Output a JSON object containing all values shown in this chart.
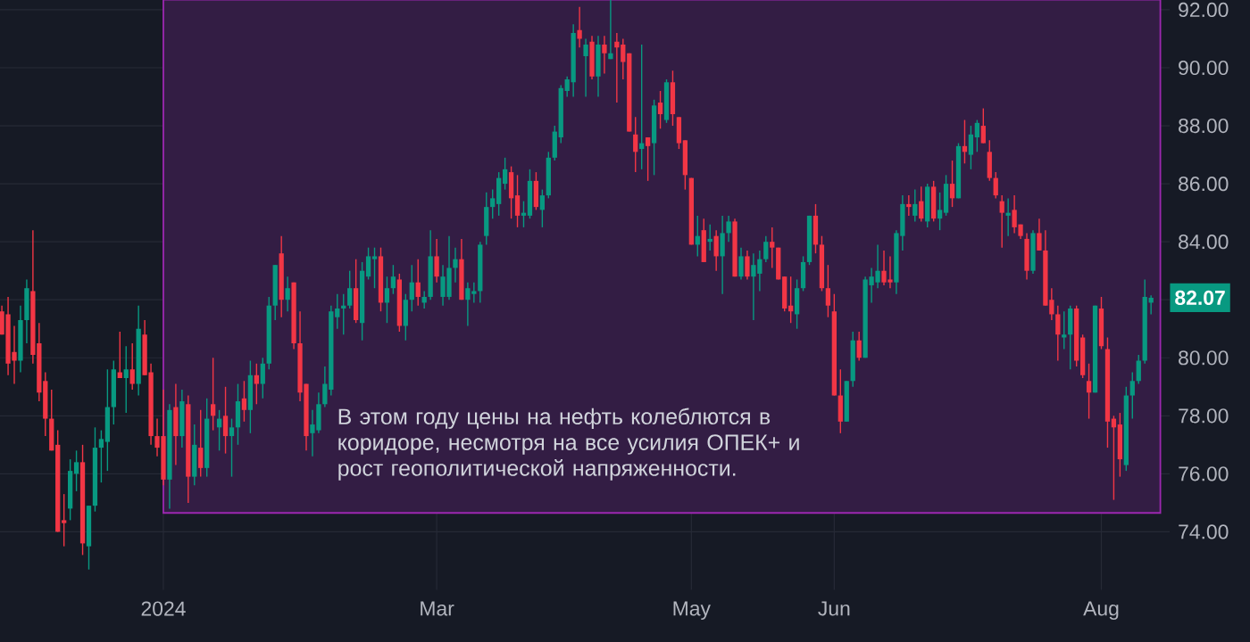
{
  "chart_data": {
    "type": "candlestick",
    "categories": [
      null,
      null,
      null,
      null,
      null,
      null,
      null,
      null,
      null,
      null,
      null,
      null,
      null,
      null,
      null,
      null,
      null,
      null,
      null,
      null,
      null,
      null,
      null,
      null,
      null,
      null,
      "2024",
      null,
      null,
      null,
      null,
      null,
      null,
      null,
      null,
      null,
      null,
      null,
      null,
      null,
      null,
      null,
      null,
      null,
      null,
      null,
      null,
      null,
      null,
      null,
      null,
      null,
      null,
      null,
      null,
      null,
      null,
      null,
      null,
      null,
      null,
      null,
      null,
      null,
      null,
      null,
      null,
      null,
      null,
      null,
      "Mar",
      null,
      null,
      null,
      null,
      null,
      null,
      null,
      null,
      null,
      null,
      null,
      null,
      null,
      null,
      null,
      null,
      null,
      null,
      null,
      null,
      null,
      null,
      null,
      null,
      null,
      null,
      null,
      null,
      null,
      null,
      null,
      null,
      null,
      null,
      null,
      null,
      null,
      null,
      null,
      null,
      "May",
      null,
      null,
      null,
      null,
      null,
      null,
      null,
      null,
      null,
      null,
      null,
      null,
      null,
      null,
      null,
      null,
      null,
      null,
      null,
      null,
      null,
      null,
      "Jun",
      null,
      null,
      null,
      null,
      null,
      null,
      null,
      null,
      null,
      null,
      null,
      null,
      null,
      null,
      null,
      null,
      null,
      null,
      null,
      null,
      null,
      null,
      null,
      null,
      null,
      null,
      null,
      null,
      null,
      null,
      null,
      null,
      null,
      null,
      null,
      null,
      null,
      null,
      null,
      null,
      null,
      null,
      "Aug",
      null,
      null,
      null,
      null,
      null,
      null,
      null,
      null
    ],
    "ohlc": [
      [
        81.6,
        81.8,
        80.8,
        80.8
      ],
      [
        81.5,
        82.1,
        79.4,
        79.8
      ],
      [
        80.2,
        81.1,
        79.1,
        79.9
      ],
      [
        79.9,
        81.8,
        79.5,
        81.3
      ],
      [
        81.3,
        82.7,
        80.5,
        82.4
      ],
      [
        82.3,
        84.4,
        79.8,
        80.1
      ],
      [
        80.5,
        81.2,
        78.5,
        78.8
      ],
      [
        79.2,
        79.5,
        77.3,
        77.9
      ],
      [
        77.9,
        78.9,
        76.8,
        76.8
      ],
      [
        77.0,
        77.5,
        74.0,
        74.0
      ],
      [
        74.4,
        75.3,
        73.5,
        74.3
      ],
      [
        74.8,
        76.5,
        74.4,
        76.1
      ],
      [
        76.0,
        76.8,
        75.4,
        76.4
      ],
      [
        76.4,
        77.0,
        73.2,
        73.6
      ],
      [
        73.5,
        74.9,
        72.7,
        74.9
      ],
      [
        74.9,
        77.6,
        74.7,
        76.9
      ],
      [
        76.9,
        77.5,
        75.7,
        77.2
      ],
      [
        77.1,
        79.6,
        76.1,
        78.3
      ],
      [
        78.3,
        79.9,
        77.7,
        79.6
      ],
      [
        79.5,
        80.9,
        79.3,
        79.3
      ],
      [
        79.3,
        80.4,
        78.1,
        79.6
      ],
      [
        79.6,
        80.5,
        78.9,
        79.1
      ],
      [
        79.1,
        81.8,
        78.7,
        81.0
      ],
      [
        80.8,
        81.3,
        79.4,
        79.4
      ],
      [
        79.5,
        79.8,
        77.0,
        77.3
      ],
      [
        77.3,
        77.9,
        76.6,
        76.9
      ],
      [
        77.3,
        78.9,
        75.6,
        75.8
      ],
      [
        75.8,
        78.4,
        74.8,
        78.2
      ],
      [
        78.3,
        79.1,
        76.3,
        77.3
      ],
      [
        77.3,
        78.9,
        76.9,
        78.5
      ],
      [
        78.4,
        78.7,
        75.0,
        75.9
      ],
      [
        75.9,
        77.7,
        75.6,
        77.0
      ],
      [
        76.9,
        78.2,
        75.9,
        76.2
      ],
      [
        76.2,
        78.6,
        75.9,
        77.9
      ],
      [
        78.4,
        80.0,
        77.5,
        78.0
      ],
      [
        77.6,
        78.2,
        76.8,
        77.9
      ],
      [
        78.0,
        79.0,
        76.7,
        77.3
      ],
      [
        77.3,
        77.9,
        75.9,
        77.6
      ],
      [
        77.6,
        79.1,
        77.0,
        78.5
      ],
      [
        78.6,
        79.2,
        77.8,
        78.2
      ],
      [
        78.2,
        79.9,
        77.4,
        79.4
      ],
      [
        79.4,
        79.8,
        78.4,
        79.1
      ],
      [
        79.1,
        80.0,
        78.6,
        79.8
      ],
      [
        79.8,
        82.1,
        79.6,
        81.8
      ],
      [
        81.8,
        83.2,
        81.3,
        83.2
      ],
      [
        83.6,
        84.2,
        81.4,
        82.0
      ],
      [
        82.0,
        82.8,
        81.6,
        82.4
      ],
      [
        82.6,
        82.6,
        80.3,
        80.5
      ],
      [
        80.5,
        81.6,
        78.5,
        78.8
      ],
      [
        79.1,
        79.1,
        76.8,
        77.3
      ],
      [
        77.4,
        78.2,
        76.6,
        77.7
      ],
      [
        77.5,
        78.8,
        77.4,
        78.4
      ],
      [
        78.4,
        79.7,
        78.3,
        79.1
      ],
      [
        78.9,
        81.8,
        78.7,
        81.6
      ],
      [
        81.4,
        82.2,
        81.0,
        81.7
      ],
      [
        81.7,
        82.2,
        80.8,
        81.8
      ],
      [
        81.8,
        83.0,
        81.7,
        82.4
      ],
      [
        82.4,
        83.4,
        81.2,
        81.3
      ],
      [
        81.2,
        83.3,
        80.6,
        83.0
      ],
      [
        82.8,
        83.8,
        82.7,
        83.5
      ],
      [
        83.4,
        83.8,
        82.4,
        83.5
      ],
      [
        83.5,
        83.8,
        81.6,
        81.9
      ],
      [
        81.9,
        82.8,
        81.2,
        82.4
      ],
      [
        82.4,
        83.2,
        82.2,
        82.8
      ],
      [
        82.7,
        82.9,
        80.9,
        81.1
      ],
      [
        81.1,
        82.2,
        80.6,
        82.0
      ],
      [
        82.0,
        83.2,
        81.6,
        82.6
      ],
      [
        82.6,
        83.4,
        81.8,
        82.1
      ],
      [
        81.9,
        82.3,
        81.7,
        82.1
      ],
      [
        82.1,
        84.4,
        82.0,
        83.5
      ],
      [
        83.5,
        84.1,
        82.6,
        82.8
      ],
      [
        82.1,
        83.2,
        81.8,
        82.8
      ],
      [
        82.1,
        84.2,
        82.0,
        83.1
      ],
      [
        83.1,
        83.8,
        82.6,
        83.4
      ],
      [
        83.4,
        84.1,
        82.0,
        82.0
      ],
      [
        82.0,
        82.6,
        81.1,
        82.4
      ],
      [
        82.2,
        82.6,
        81.9,
        82.3
      ],
      [
        82.3,
        84.0,
        81.9,
        83.9
      ],
      [
        84.2,
        85.7,
        83.9,
        85.2
      ],
      [
        85.2,
        85.8,
        84.8,
        85.5
      ],
      [
        85.3,
        86.4,
        84.9,
        86.2
      ],
      [
        86.0,
        86.9,
        85.8,
        86.5
      ],
      [
        86.4,
        86.6,
        84.8,
        85.5
      ],
      [
        85.6,
        86.3,
        84.5,
        84.9
      ],
      [
        84.9,
        85.4,
        84.5,
        85.0
      ],
      [
        84.9,
        86.5,
        84.8,
        86.1
      ],
      [
        86.1,
        86.4,
        85.1,
        85.2
      ],
      [
        85.1,
        85.8,
        84.5,
        85.6
      ],
      [
        85.6,
        87.1,
        85.5,
        86.9
      ],
      [
        86.9,
        88.0,
        86.8,
        87.8
      ],
      [
        87.6,
        89.4,
        87.4,
        89.3
      ],
      [
        89.2,
        89.7,
        89.0,
        89.6
      ],
      [
        89.5,
        91.5,
        89.0,
        91.2
      ],
      [
        91.3,
        92.1,
        90.7,
        91.0
      ],
      [
        90.4,
        91.0,
        89.0,
        90.8
      ],
      [
        90.9,
        91.1,
        89.6,
        89.7
      ],
      [
        89.7,
        91.1,
        89.0,
        90.8
      ],
      [
        90.8,
        91.1,
        89.8,
        90.5
      ],
      [
        90.3,
        92.4,
        90.3,
        90.5
      ],
      [
        90.9,
        91.2,
        88.8,
        90.7
      ],
      [
        90.8,
        91.0,
        89.6,
        90.2
      ],
      [
        90.5,
        90.5,
        87.8,
        87.8
      ],
      [
        87.7,
        88.3,
        86.4,
        87.1
      ],
      [
        87.2,
        90.8,
        86.5,
        87.4
      ],
      [
        87.6,
        87.6,
        86.1,
        87.3
      ],
      [
        87.4,
        88.9,
        86.3,
        88.7
      ],
      [
        88.8,
        89.2,
        87.9,
        88.4
      ],
      [
        88.2,
        89.6,
        88.1,
        89.5
      ],
      [
        89.5,
        89.9,
        88.0,
        88.4
      ],
      [
        88.3,
        88.3,
        87.2,
        87.4
      ],
      [
        87.5,
        87.5,
        85.8,
        86.3
      ],
      [
        86.2,
        86.2,
        83.9,
        83.9
      ],
      [
        83.9,
        84.9,
        83.5,
        84.2
      ],
      [
        84.4,
        84.8,
        83.3,
        83.3
      ],
      [
        84.0,
        84.6,
        83.7,
        84.1
      ],
      [
        84.2,
        84.4,
        83.0,
        83.5
      ],
      [
        83.5,
        84.9,
        82.2,
        84.3
      ],
      [
        84.3,
        84.9,
        84.0,
        84.7
      ],
      [
        84.7,
        84.8,
        82.8,
        82.8
      ],
      [
        82.8,
        83.8,
        82.7,
        83.5
      ],
      [
        83.5,
        83.7,
        82.7,
        82.8
      ],
      [
        82.8,
        83.6,
        81.3,
        83.2
      ],
      [
        82.9,
        83.7,
        82.3,
        83.4
      ],
      [
        83.4,
        84.2,
        83.3,
        84.0
      ],
      [
        84.0,
        84.5,
        83.1,
        83.8
      ],
      [
        83.8,
        83.8,
        82.7,
        82.7
      ],
      [
        82.8,
        82.8,
        81.6,
        81.7
      ],
      [
        81.8,
        82.8,
        81.2,
        81.6
      ],
      [
        81.5,
        82.7,
        81.0,
        82.4
      ],
      [
        82.4,
        83.5,
        82.3,
        83.3
      ],
      [
        83.3,
        84.9,
        83.2,
        84.9
      ],
      [
        84.9,
        85.3,
        83.6,
        83.9
      ],
      [
        83.9,
        84.2,
        82.3,
        82.4
      ],
      [
        82.4,
        83.2,
        81.4,
        81.8
      ],
      [
        81.6,
        82.2,
        78.7,
        78.7
      ],
      [
        78.7,
        79.6,
        77.4,
        77.8
      ],
      [
        77.8,
        79.2,
        77.8,
        79.2
      ],
      [
        79.2,
        80.9,
        79.0,
        80.6
      ],
      [
        80.6,
        80.9,
        79.9,
        80.0
      ],
      [
        80.0,
        82.8,
        80.0,
        82.7
      ],
      [
        82.5,
        83.1,
        81.9,
        82.8
      ],
      [
        82.6,
        83.9,
        82.4,
        83.0
      ],
      [
        83.0,
        83.7,
        82.5,
        82.6
      ],
      [
        82.7,
        83.5,
        82.4,
        82.6
      ],
      [
        82.6,
        84.4,
        82.2,
        84.3
      ],
      [
        84.2,
        85.6,
        83.7,
        85.3
      ],
      [
        85.3,
        85.6,
        84.9,
        85.2
      ],
      [
        84.9,
        85.8,
        84.7,
        85.3
      ],
      [
        85.4,
        85.9,
        84.7,
        84.8
      ],
      [
        84.7,
        86.0,
        84.5,
        85.9
      ],
      [
        85.9,
        86.1,
        84.7,
        84.8
      ],
      [
        84.8,
        85.7,
        84.4,
        85.1
      ],
      [
        85.0,
        86.3,
        84.9,
        86.0
      ],
      [
        86.0,
        86.8,
        85.2,
        85.5
      ],
      [
        85.5,
        87.4,
        85.5,
        87.3
      ],
      [
        87.3,
        88.2,
        86.7,
        87.1
      ],
      [
        87.0,
        88.0,
        86.5,
        87.7
      ],
      [
        87.6,
        88.2,
        87.1,
        88.1
      ],
      [
        88.0,
        88.6,
        87.4,
        87.4
      ],
      [
        87.1,
        87.5,
        86.1,
        86.2
      ],
      [
        86.2,
        86.4,
        85.5,
        85.6
      ],
      [
        85.4,
        85.6,
        83.8,
        85.0
      ],
      [
        84.9,
        85.5,
        84.2,
        85.0
      ],
      [
        85.1,
        85.6,
        84.3,
        84.5
      ],
      [
        84.6,
        84.6,
        84.1,
        84.2
      ],
      [
        84.1,
        84.3,
        82.7,
        83.0
      ],
      [
        83.0,
        84.4,
        82.9,
        84.3
      ],
      [
        84.3,
        84.8,
        83.7,
        83.7
      ],
      [
        83.7,
        84.4,
        81.8,
        81.8
      ],
      [
        82.0,
        82.4,
        81.3,
        81.5
      ],
      [
        81.5,
        81.8,
        79.9,
        80.8
      ],
      [
        80.7,
        81.6,
        80.3,
        80.8
      ],
      [
        80.8,
        81.8,
        79.6,
        81.7
      ],
      [
        81.7,
        81.8,
        79.7,
        79.9
      ],
      [
        80.7,
        80.8,
        79.3,
        79.4
      ],
      [
        79.2,
        79.8,
        77.9,
        78.8
      ],
      [
        78.8,
        81.8,
        78.8,
        81.8
      ],
      [
        81.7,
        82.1,
        80.3,
        80.4
      ],
      [
        80.3,
        80.7,
        76.9,
        77.8
      ],
      [
        77.9,
        78.0,
        75.1,
        77.6
      ],
      [
        77.7,
        78.1,
        75.9,
        76.5
      ],
      [
        76.3,
        79.0,
        76.1,
        78.7
      ],
      [
        78.7,
        79.5,
        77.9,
        79.2
      ],
      [
        79.2,
        80.1,
        79.1,
        79.9
      ],
      [
        79.9,
        82.7,
        79.8,
        82.1
      ],
      [
        81.9,
        82.15,
        81.5,
        82.07
      ]
    ],
    "colors": [
      "#f23645",
      "#f23645",
      "#f23645",
      "#089981",
      "#089981",
      "#f23645",
      "#f23645",
      "#f23645",
      "#f23645",
      "#f23645",
      "#f23645",
      "#089981",
      "#089981",
      "#f23645",
      "#089981",
      "#089981",
      "#089981",
      "#089981",
      "#089981",
      "#f23645",
      "#089981",
      "#f23645",
      "#089981",
      "#f23645",
      "#f23645",
      "#f23645",
      "#f23645",
      "#089981",
      "#f23645",
      "#089981",
      "#f23645",
      "#089981",
      "#f23645",
      "#089981",
      "#f23645",
      "#089981",
      "#f23645",
      "#089981",
      "#089981",
      "#f23645",
      "#089981",
      "#f23645",
      "#089981",
      "#089981",
      "#089981",
      "#f23645",
      "#089981",
      "#f23645",
      "#f23645",
      "#f23645",
      "#089981",
      "#089981",
      "#089981",
      "#089981",
      "#089981",
      "#089981",
      "#089981",
      "#f23645",
      "#089981",
      "#089981",
      "#089981",
      "#f23645",
      "#089981",
      "#089981",
      "#f23645",
      "#089981",
      "#089981",
      "#f23645",
      "#089981",
      "#089981",
      "#f23645",
      "#089981",
      "#089981",
      "#089981",
      "#f23645",
      "#089981",
      "#089981",
      "#089981",
      "#089981",
      "#089981",
      "#089981",
      "#089981",
      "#f23645",
      "#f23645",
      "#089981",
      "#089981",
      "#f23645",
      "#089981",
      "#089981",
      "#089981",
      "#089981",
      "#089981",
      "#089981",
      "#f23645",
      "#089981",
      "#f23645",
      "#089981",
      "#f23645",
      "#089981",
      "#f23645",
      "#f23645",
      "#f23645",
      "#f23645",
      "#089981",
      "#f23645",
      "#089981",
      "#f23645",
      "#089981",
      "#f23645",
      "#f23645",
      "#f23645",
      "#f23645",
      "#089981",
      "#f23645",
      "#089981",
      "#f23645",
      "#089981",
      "#089981",
      "#f23645",
      "#089981",
      "#f23645",
      "#089981",
      "#089981",
      "#089981",
      "#f23645",
      "#f23645",
      "#f23645",
      "#f23645",
      "#089981",
      "#089981",
      "#089981",
      "#f23645",
      "#f23645",
      "#f23645",
      "#f23645",
      "#f23645",
      "#089981",
      "#089981",
      "#f23645",
      "#089981",
      "#089981",
      "#089981",
      "#f23645",
      "#f23645",
      "#089981",
      "#089981",
      "#f23645",
      "#089981",
      "#f23645",
      "#089981",
      "#f23645",
      "#089981",
      "#089981",
      "#f23645",
      "#089981",
      "#f23645",
      "#089981",
      "#089981",
      "#f23645",
      "#f23645",
      "#f23645",
      "#f23645",
      "#089981",
      "#f23645",
      "#f23645",
      "#f23645",
      "#089981",
      "#f23645",
      "#f23645",
      "#f23645",
      "#f23645",
      "#089981",
      "#089981",
      "#f23645",
      "#f23645",
      "#f23645",
      "#089981",
      "#f23645",
      "#f23645",
      "#f23645",
      "#f23645",
      "#089981",
      "#089981",
      "#089981",
      "#089981",
      "#089981"
    ],
    "ylim": [
      72,
      92.6
    ],
    "yticks": [
      {
        "value": 74,
        "label": "74.00"
      },
      {
        "value": 76,
        "label": "76.00"
      },
      {
        "value": 78,
        "label": "78.00"
      },
      {
        "value": 80,
        "label": "80.00"
      },
      {
        "value": 82,
        "label": null
      },
      {
        "value": 84,
        "label": "84.00"
      },
      {
        "value": 86,
        "label": "86.00"
      },
      {
        "value": 88,
        "label": "88.00"
      },
      {
        "value": 90,
        "label": "90.00"
      },
      {
        "value": 92,
        "label": "92.00"
      }
    ],
    "grid": true,
    "bands": [
      {
        "axis": "y",
        "from": 74.65,
        "to": 92.35,
        "color": "#9c27b0"
      }
    ],
    "annotations": [
      "В этом году цены на нефть колеблются в коридоре, несмотря на все усилия ОПЕК+ и рост геополитической напряженности.",
      {
        "text": "82.07",
        "y": 82.07
      }
    ]
  }
}
